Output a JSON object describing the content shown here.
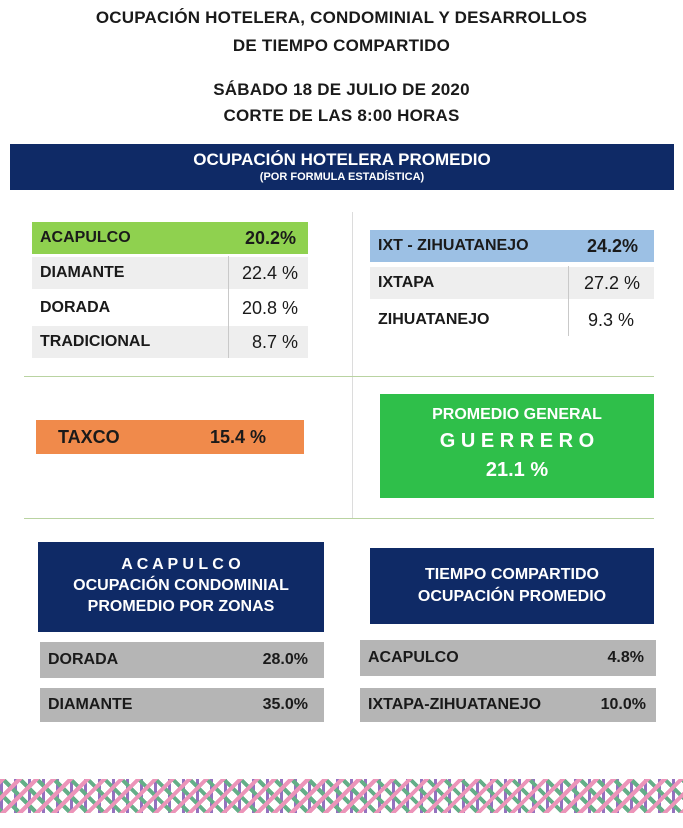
{
  "header": {
    "title_line1": "OCUPACIÓN HOTELERA, CONDOMINIAL Y DESARROLLOS",
    "title_line2": "DE TIEMPO COMPARTIDO",
    "date": "SÁBADO 18 DE JULIO DE 2020",
    "cutoff": "CORTE DE LAS 8:00 HORAS"
  },
  "banner": {
    "title": "OCUPACIÓN HOTELERA PROMEDIO",
    "subtitle": "(POR FORMULA ESTADÍSTICA)"
  },
  "acapulco": {
    "main": {
      "label": "ACAPULCO",
      "value": "20.2%"
    },
    "rows": [
      {
        "label": "DIAMANTE",
        "value": "22.4 %"
      },
      {
        "label": "DORADA",
        "value": "20.8 %"
      },
      {
        "label": "TRADICIONAL",
        "value": "8.7 %"
      }
    ]
  },
  "ixtapa": {
    "main": {
      "label": "IXT - ZIHUATANEJO",
      "value": "24.2%"
    },
    "rows": [
      {
        "label": "IXTAPA",
        "value": "27.2 %"
      },
      {
        "label": "ZIHUATANEJO",
        "value": "9.3 %"
      }
    ]
  },
  "taxco": {
    "label": "TAXCO",
    "value": "15.4 %"
  },
  "promedio": {
    "line1": "PROMEDIO GENERAL",
    "line2": "G U E R R E R O",
    "value": "21.1 %"
  },
  "condominial": {
    "title1": "A C A P U L C O",
    "title2": "OCUPACIÓN CONDOMINIAL",
    "title3": "PROMEDIO POR ZONAS",
    "rows": [
      {
        "label": "DORADA",
        "value": "28.0%"
      },
      {
        "label": "DIAMANTE",
        "value": "35.0%"
      }
    ]
  },
  "tiempo": {
    "title1": "TIEMPO COMPARTIDO",
    "title2": "OCUPACIÓN PROMEDIO",
    "rows": [
      {
        "label": "ACAPULCO",
        "value": "4.8%"
      },
      {
        "label": "IXTAPA-ZIHUATANEJO",
        "value": "10.0%"
      }
    ]
  },
  "colors": {
    "navy": "#0f2a66",
    "acapulco_highlight": "#8fd14f",
    "ixtapa_highlight": "#9cc0e4",
    "taxco_orange": "#f08a4b",
    "promedio_green": "#2fbf4a"
  }
}
